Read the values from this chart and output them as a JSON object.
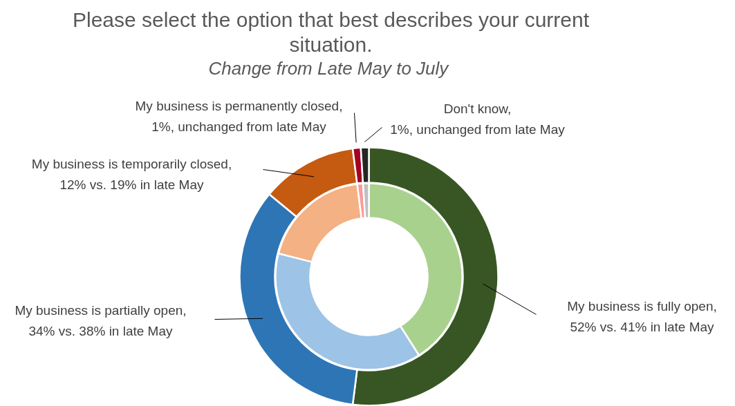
{
  "chart_data": {
    "type": "donut",
    "title": "Please select the option that best describes your current situation.",
    "subtitle": "Change  from Late May to July",
    "categories": [
      "My business is fully open, 52% vs. 41% in late May",
      "My business is partially open, 34% vs. 38% in late May",
      "My business is temporarily closed, 12% vs. 19% in late May",
      "My business is permanently closed, 1%, unchanged from late May",
      "Don't know, 1%, unchanged from late May"
    ],
    "series": [
      {
        "values": [
          52,
          34,
          12,
          1,
          1
        ],
        "colors": [
          "#375623",
          "#2e75b6",
          "#c55a11",
          "#a50021",
          "#262626"
        ]
      },
      {
        "values": [
          41,
          38,
          19,
          1,
          1
        ],
        "colors": [
          "#a9d18e",
          "#9dc3e6",
          "#f4b183",
          "#ff9999",
          "#bfbfbf"
        ]
      }
    ],
    "legend": false
  }
}
